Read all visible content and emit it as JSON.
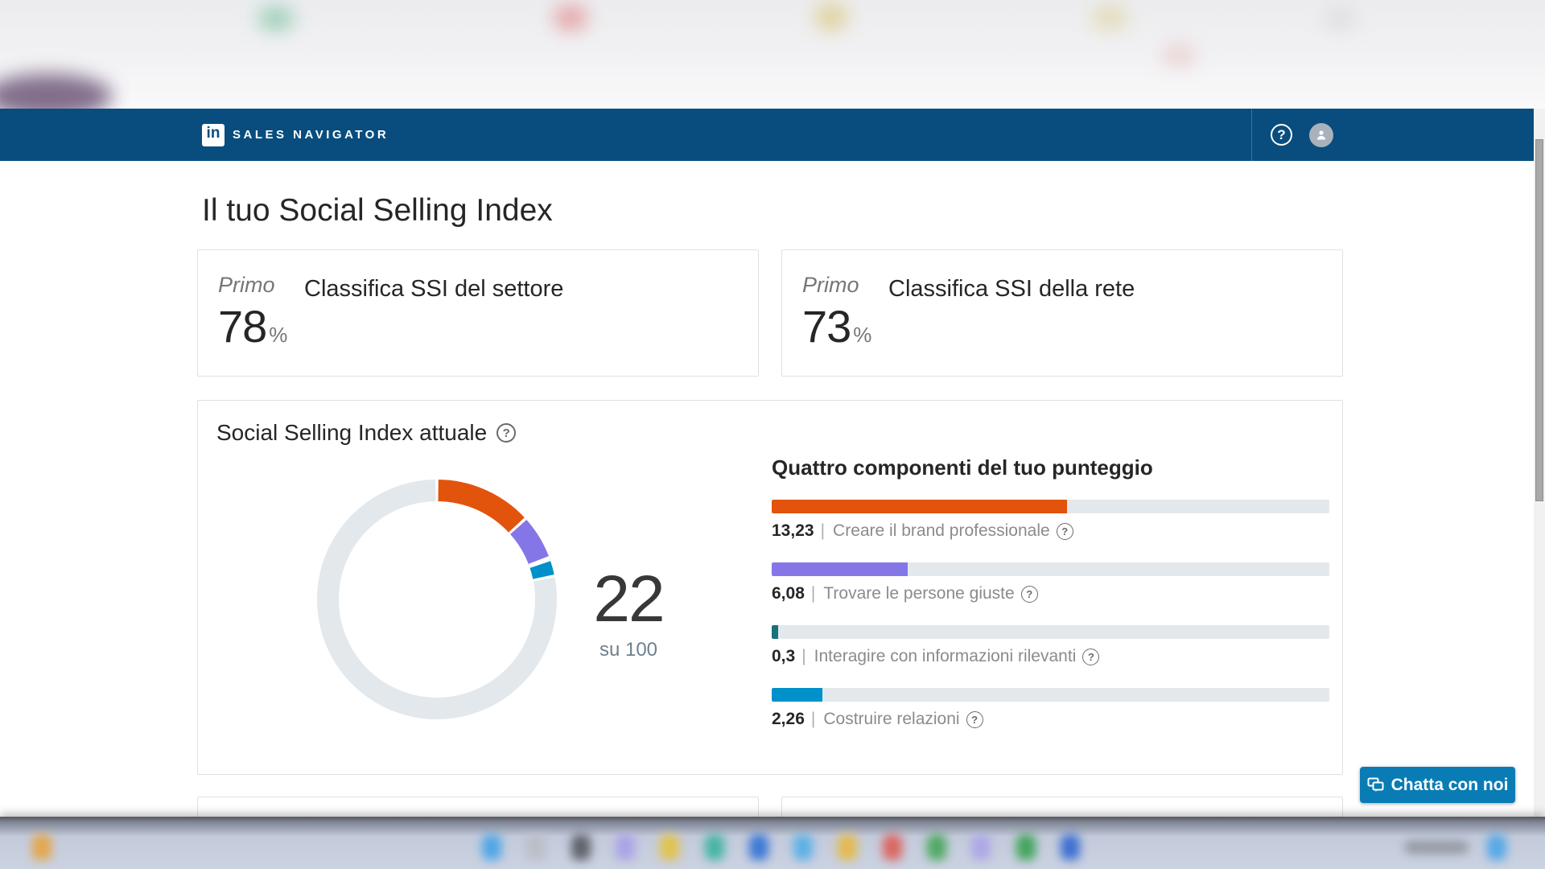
{
  "header": {
    "brand_icon": "in",
    "brand_text": "SALES NAVIGATOR",
    "help_glyph": "?",
    "bg_color": "#084D7E"
  },
  "page_title": "Il tuo Social Selling Index",
  "rank_cards": [
    {
      "rank": "Primo",
      "value": "78",
      "unit": "%",
      "title": "Classifica SSI del settore"
    },
    {
      "rank": "Primo",
      "value": "73",
      "unit": "%",
      "title": "Classifica SSI della rete"
    }
  ],
  "ssi_card": {
    "title": "Social Selling Index attuale",
    "help_glyph": "?",
    "score": "22",
    "score_denominator": "su 100",
    "components_heading": "Quattro componenti del tuo punteggio",
    "value_separator": "|"
  },
  "chart_data": {
    "type": "donut",
    "title": "Social Selling Index attuale",
    "score_total": 22,
    "score_max": 100,
    "score_label": "su 100",
    "component_max": 25,
    "track_color": "#E3E8EC",
    "segments": [
      {
        "label": "Creare il brand professionale",
        "value": 13.23,
        "value_display": "13,23",
        "color": "#E2530C"
      },
      {
        "label": "Trovare le persone giuste",
        "value": 6.08,
        "value_display": "6,08",
        "color": "#8576E8"
      },
      {
        "label": "Interagire con informazioni rilevanti",
        "value": 0.3,
        "value_display": "0,3",
        "color": "#17727B"
      },
      {
        "label": "Costruire relazioni",
        "value": 2.26,
        "value_display": "2,26",
        "color": "#0091CA"
      }
    ]
  },
  "chat_button": {
    "label": "Chatta con noi"
  },
  "decor": {
    "top_blob_colors": [
      "#7FC4A3",
      "#E08A8A",
      "#D9C87E",
      "#DFD6A8",
      "#E8C4C4",
      "#DADADD",
      "#5A3F66"
    ],
    "taskbar_icon_colors": [
      "#E8A33E",
      "#44A2E8",
      "#B9BDC4",
      "#55585F",
      "#A79FE8",
      "#E5C23F",
      "#39B2A0",
      "#2E6FD4",
      "#52AEE8",
      "#E8B93E",
      "#DD5B55",
      "#43A556",
      "#ABA3E8",
      "#35A04F",
      "#2F66D0",
      "#8E929B",
      "#4AA4E8"
    ]
  }
}
